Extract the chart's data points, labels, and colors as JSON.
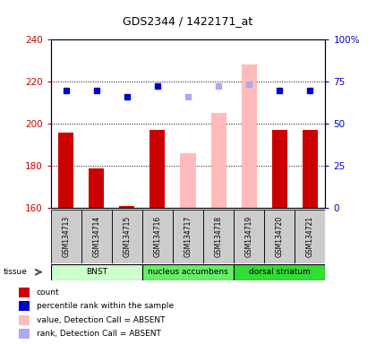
{
  "title": "GDS2344 / 1422171_at",
  "samples": [
    "GSM134713",
    "GSM134714",
    "GSM134715",
    "GSM134716",
    "GSM134717",
    "GSM134718",
    "GSM134719",
    "GSM134720",
    "GSM134721"
  ],
  "values_present": [
    196,
    179,
    161,
    197,
    null,
    null,
    null,
    197,
    197
  ],
  "values_absent": [
    null,
    null,
    null,
    null,
    186,
    205,
    228,
    null,
    null
  ],
  "rank_present": [
    216,
    216,
    213,
    218,
    null,
    null,
    null,
    216,
    216
  ],
  "rank_absent": [
    null,
    null,
    null,
    null,
    213,
    218,
    219,
    null,
    null
  ],
  "ymin": 160,
  "ymax": 240,
  "yticks": [
    160,
    180,
    200,
    220,
    240
  ],
  "ytick_labels": [
    "160",
    "180",
    "200",
    "220",
    "240"
  ],
  "y2ticks_vals": [
    160,
    180,
    200,
    220,
    240
  ],
  "y2tick_labels": [
    "0",
    "25",
    "50",
    "75",
    "100%"
  ],
  "tissues": [
    {
      "label": "BNST",
      "start": 0,
      "end": 3,
      "color": "#ccffcc"
    },
    {
      "label": "nucleus accumbens",
      "start": 3,
      "end": 6,
      "color": "#66ee66"
    },
    {
      "label": "dorsal striatum",
      "start": 6,
      "end": 9,
      "color": "#33dd33"
    }
  ],
  "bar_width": 0.5,
  "bar_color_present": "#cc0000",
  "bar_color_absent": "#ffbbbb",
  "dot_color_present": "#0000cc",
  "dot_color_absent": "#aaaaee",
  "ylabel_color_left": "#cc0000",
  "ylabel_color_right": "#0000cc",
  "background_color": "#ffffff",
  "sample_bg_color": "#cccccc",
  "grid_color": "black",
  "legend_items": [
    {
      "color": "#cc0000",
      "marker": "rect",
      "label": "count"
    },
    {
      "color": "#0000cc",
      "marker": "rect",
      "label": "percentile rank within the sample"
    },
    {
      "color": "#ffbbbb",
      "marker": "rect",
      "label": "value, Detection Call = ABSENT"
    },
    {
      "color": "#aaaaee",
      "marker": "rect",
      "label": "rank, Detection Call = ABSENT"
    }
  ]
}
